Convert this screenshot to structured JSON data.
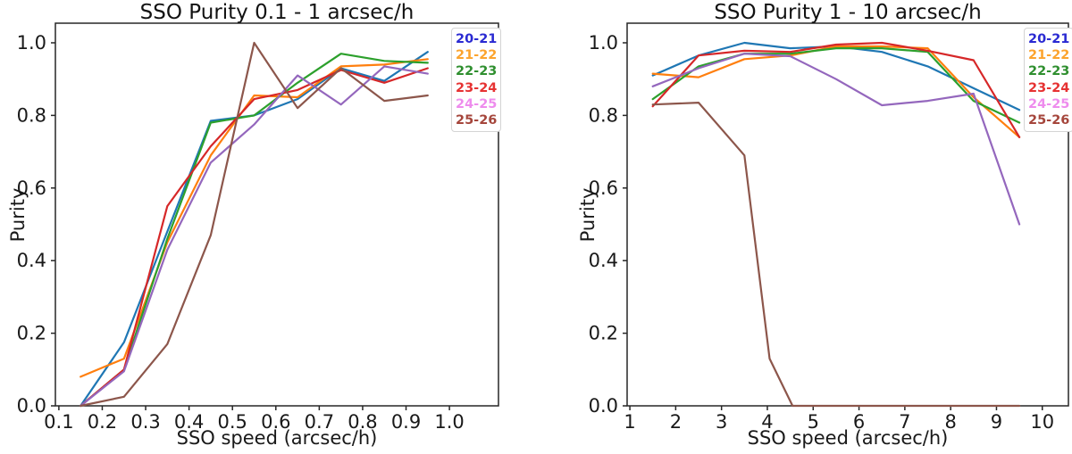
{
  "figure": {
    "background": "#ffffff",
    "spine_color": "#262626",
    "tick_label_color": "#191919"
  },
  "chart_data": [
    {
      "type": "line",
      "title": "SSO Purity 0.1 - 1 arcsec/h",
      "xlabel": "SSO speed (arcsec/h)",
      "ylabel": "Purity",
      "xlim": [
        0.092,
        1.113
      ],
      "ylim": [
        0,
        1.054
      ],
      "grid": false,
      "legend_position": "upper right",
      "xticks": [
        0.1,
        0.2,
        0.3,
        0.4,
        0.5,
        0.6,
        0.7,
        0.8,
        0.9,
        1.0
      ],
      "xtick_labels": [
        "0.1",
        "0.2",
        "0.3",
        "0.4",
        "0.5",
        "0.6",
        "0.7",
        "0.8",
        "0.9",
        "1.0"
      ],
      "yticks": [
        0.0,
        0.2,
        0.4,
        0.6,
        0.8,
        1.0
      ],
      "ytick_labels": [
        "0.0",
        "0.2",
        "0.4",
        "0.6",
        "0.8",
        "1.0"
      ],
      "x": [
        0.15,
        0.25,
        0.35,
        0.45,
        0.55,
        0.65,
        0.75,
        0.85,
        0.95
      ],
      "series": [
        {
          "name": "20-21",
          "color": "#1f77b4",
          "legend_color": "#2a2ad2",
          "values": [
            0.0,
            0.175,
            0.48,
            0.785,
            0.8,
            0.845,
            0.93,
            0.895,
            0.975
          ]
        },
        {
          "name": "21-22",
          "color": "#ff7f0e",
          "legend_color": "#fca42e",
          "values": [
            0.08,
            0.13,
            0.45,
            0.69,
            0.855,
            0.85,
            0.935,
            0.94,
            0.955
          ]
        },
        {
          "name": "22-23",
          "color": "#2ca02c",
          "legend_color": "#2f8f2f",
          "values": [
            0.0,
            0.1,
            0.46,
            0.78,
            0.8,
            0.89,
            0.97,
            0.95,
            0.945
          ]
        },
        {
          "name": "23-24",
          "color": "#d62728",
          "legend_color": "#e63232",
          "values": [
            0.0,
            0.1,
            0.55,
            0.715,
            0.845,
            0.87,
            0.925,
            0.89,
            0.93
          ]
        },
        {
          "name": "24-25",
          "color": "#9467bd",
          "legend_color": "#ee8ced",
          "values": [
            0.0,
            0.095,
            0.43,
            0.67,
            0.775,
            0.91,
            0.83,
            0.935,
            0.915
          ]
        },
        {
          "name": "25-26",
          "color": "#8c564b",
          "legend_color": "#a5463c",
          "values": [
            0.0,
            0.025,
            0.17,
            0.47,
            1.0,
            0.82,
            0.93,
            0.84,
            0.855
          ]
        }
      ]
    },
    {
      "type": "line",
      "title": "SSO Purity 1 - 10 arcsec/h",
      "xlabel": "SSO speed (arcsec/h)",
      "ylabel": "Purity",
      "xlim": [
        0.94,
        10.57
      ],
      "ylim": [
        0,
        1.054
      ],
      "grid": false,
      "legend_position": "upper right",
      "xticks": [
        1,
        2,
        3,
        4,
        5,
        6,
        7,
        8,
        9,
        10
      ],
      "xtick_labels": [
        "1",
        "2",
        "3",
        "4",
        "5",
        "6",
        "7",
        "8",
        "9",
        "10"
      ],
      "yticks": [
        0.0,
        0.2,
        0.4,
        0.6,
        0.8,
        1.0
      ],
      "ytick_labels": [
        "0.0",
        "0.2",
        "0.4",
        "0.6",
        "0.8",
        "1.0"
      ],
      "x": [
        1.5,
        2.5,
        3.5,
        4.5,
        5.5,
        6.5,
        7.5,
        8.5,
        9.5
      ],
      "series": [
        {
          "name": "20-21",
          "color": "#1f77b4",
          "legend_color": "#2a2ad2",
          "values": [
            0.91,
            0.965,
            1.0,
            0.985,
            0.99,
            0.975,
            0.935,
            0.875,
            0.815
          ]
        },
        {
          "name": "21-22",
          "color": "#ff7f0e",
          "legend_color": "#fca42e",
          "values": [
            0.915,
            0.905,
            0.955,
            0.965,
            0.99,
            0.99,
            0.985,
            0.85,
            0.74
          ]
        },
        {
          "name": "22-23",
          "color": "#2ca02c",
          "legend_color": "#2f8f2f",
          "values": [
            0.845,
            0.935,
            0.97,
            0.97,
            0.985,
            0.985,
            0.975,
            0.84,
            0.78
          ]
        },
        {
          "name": "23-24",
          "color": "#d62728",
          "legend_color": "#e63232",
          "values": [
            0.825,
            0.965,
            0.978,
            0.975,
            0.995,
            1.0,
            0.978,
            0.952,
            0.74
          ]
        },
        {
          "name": "24-25",
          "color": "#9467bd",
          "legend_color": "#ee8ced",
          "values": [
            0.88,
            0.93,
            0.97,
            0.963,
            0.9,
            0.828,
            0.84,
            0.86,
            0.5
          ]
        },
        {
          "name": "25-26",
          "color": "#8c564b",
          "legend_color": "#a5463c",
          "x": [
            1.5,
            2.5,
            3.5,
            4.05,
            4.55,
            9.5
          ],
          "values": [
            0.83,
            0.835,
            0.69,
            0.13,
            0.0,
            0.0
          ]
        }
      ]
    }
  ]
}
